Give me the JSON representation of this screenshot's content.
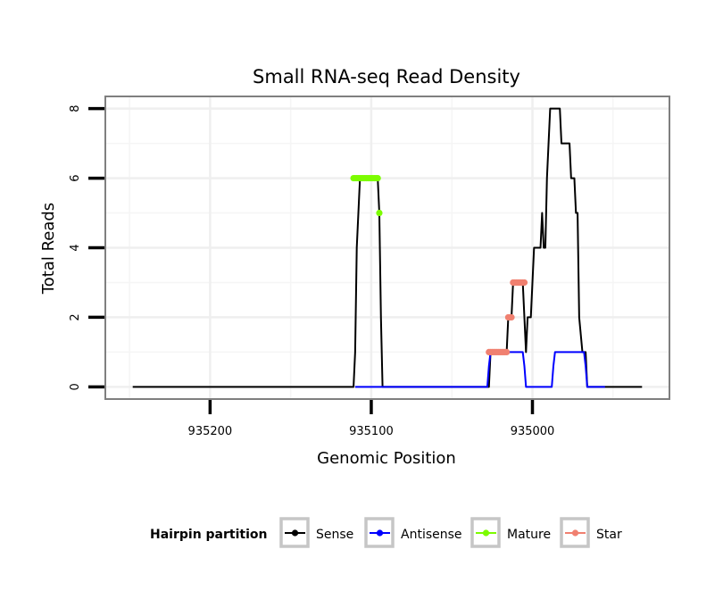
{
  "chart_data": {
    "type": "line",
    "title": "Small RNA-seq Read Density",
    "xlabel": "Genomic Position",
    "ylabel": "Total Reads",
    "x_reversed": true,
    "xlim": [
      935265,
      934915
    ],
    "ylim": [
      -0.35,
      8.35
    ],
    "x_ticks": [
      935200,
      935100,
      935000
    ],
    "x_tick_labels": [
      "935200",
      "935100",
      "935000"
    ],
    "y_ticks": [
      0,
      2,
      4,
      6,
      8
    ],
    "y_tick_labels": [
      "0",
      "2",
      "4",
      "6",
      "8"
    ],
    "grid": true,
    "legend": {
      "title": "Hairpin partition",
      "position": "bottom",
      "entries": [
        {
          "label": "Sense",
          "color": "#000000"
        },
        {
          "label": "Antisense",
          "color": "#0000ff"
        },
        {
          "label": "Mature",
          "color": "#7cfc00"
        },
        {
          "label": "Star",
          "color": "#f08070"
        }
      ]
    },
    "series": [
      {
        "name": "Sense",
        "color": "#000000",
        "style": "line",
        "x": [
          935248,
          935111,
          935110,
          935109,
          935108,
          935107,
          935096,
          935095,
          935094,
          935093,
          935027,
          935026,
          935025,
          935016,
          935015,
          935014,
          935013,
          935012,
          935011,
          935010,
          935009,
          935008,
          935006,
          935005,
          935004,
          935003,
          935002,
          935001,
          935000,
          934999,
          934998,
          934997,
          934996,
          934995,
          934994,
          934993,
          934992,
          934991,
          934990,
          934989,
          934988,
          934987,
          934986,
          934985,
          934984,
          934983,
          934982,
          934981,
          934980,
          934979,
          934978,
          934977,
          934976,
          934975,
          934974,
          934973,
          934972,
          934971,
          934969,
          934968,
          934967,
          934966,
          934965,
          934964,
          934963,
          934962,
          934961,
          934960,
          934959,
          934958,
          934957,
          934956,
          934955,
          934954,
          934953,
          934952,
          934951,
          934932
        ],
        "y": [
          0,
          0,
          1,
          4,
          5,
          6,
          6,
          5,
          2,
          0,
          0,
          1,
          1,
          1,
          2,
          2,
          2,
          3,
          3,
          3,
          3,
          3,
          3,
          2,
          1,
          2,
          2,
          2,
          3,
          4,
          4,
          4,
          4,
          4,
          5,
          4,
          4,
          6,
          7,
          8,
          8,
          8,
          8,
          8,
          8,
          8,
          7,
          7,
          7,
          7,
          7,
          7,
          6,
          6,
          6,
          5,
          5,
          2,
          1,
          1,
          1,
          0,
          0,
          0,
          0,
          0,
          0,
          0,
          0,
          0,
          0,
          0,
          0,
          0,
          0,
          0,
          0,
          0
        ]
      },
      {
        "name": "Antisense",
        "color": "#0000ff",
        "style": "line",
        "x": [
          935110,
          935028,
          935027,
          935026,
          935006,
          935005,
          935004,
          934988,
          934987,
          934986,
          934968,
          934967,
          934966,
          934955
        ],
        "y": [
          0,
          0,
          0.6,
          1,
          1,
          0.6,
          0,
          0,
          0.6,
          1,
          1,
          0.6,
          0,
          0
        ]
      },
      {
        "name": "Mature",
        "color": "#7cfc00",
        "style": "points",
        "x": [
          935111,
          935110,
          935109,
          935108,
          935107,
          935106,
          935105,
          935104,
          935103,
          935102,
          935101,
          935100,
          935099,
          935098,
          935097,
          935096,
          935095
        ],
        "y": [
          6,
          6,
          6,
          6,
          6,
          6,
          6,
          6,
          6,
          6,
          6,
          6,
          6,
          6,
          6,
          6,
          5
        ]
      },
      {
        "name": "Star",
        "color": "#f08070",
        "style": "points",
        "x": [
          935027,
          935026,
          935025,
          935024,
          935023,
          935022,
          935021,
          935020,
          935019,
          935018,
          935017,
          935016,
          935015,
          935014,
          935013,
          935012,
          935011,
          935010,
          935009,
          935008,
          935007,
          935006,
          935005
        ],
        "y": [
          1,
          1,
          1,
          1,
          1,
          1,
          1,
          1,
          1,
          1,
          1,
          1,
          2,
          2,
          2,
          3,
          3,
          3,
          3,
          3,
          3,
          3,
          3
        ]
      }
    ]
  }
}
